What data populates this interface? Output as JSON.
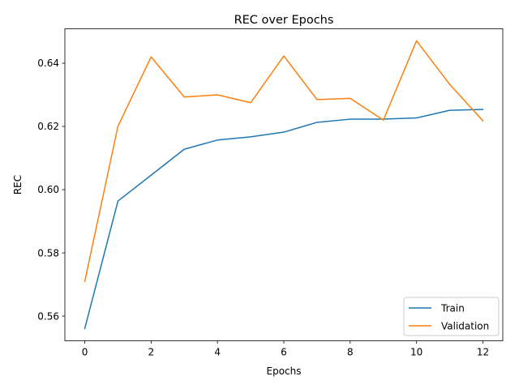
{
  "chart_data": {
    "type": "line",
    "title": "REC over Epochs",
    "xlabel": "Epochs",
    "ylabel": "REC",
    "x": [
      0,
      1,
      2,
      3,
      4,
      5,
      6,
      7,
      8,
      9,
      10,
      11,
      12
    ],
    "xlim": [
      -0.6,
      12.6
    ],
    "ylim": [
      0.5522,
      0.6509
    ],
    "xticks": [
      0,
      2,
      4,
      6,
      8,
      10,
      12
    ],
    "yticks": [
      0.56,
      0.58,
      0.6,
      0.62,
      0.64
    ],
    "xtick_labels": [
      "0",
      "2",
      "4",
      "6",
      "8",
      "10",
      "12"
    ],
    "ytick_labels": [
      "0.56",
      "0.58",
      "0.60",
      "0.62",
      "0.64"
    ],
    "grid": false,
    "legend_position": "lower right",
    "series": [
      {
        "name": "Train",
        "color": "#1f77b4",
        "values": [
          0.5561,
          0.5964,
          0.6046,
          0.6128,
          0.6157,
          0.6167,
          0.6182,
          0.6213,
          0.6223,
          0.6223,
          0.6227,
          0.6251,
          0.6254
        ]
      },
      {
        "name": "Validation",
        "color": "#ff7f0e",
        "values": [
          0.571,
          0.6201,
          0.642,
          0.6293,
          0.63,
          0.6275,
          0.6423,
          0.6285,
          0.6289,
          0.622,
          0.6471,
          0.6333,
          0.6218
        ]
      }
    ]
  }
}
